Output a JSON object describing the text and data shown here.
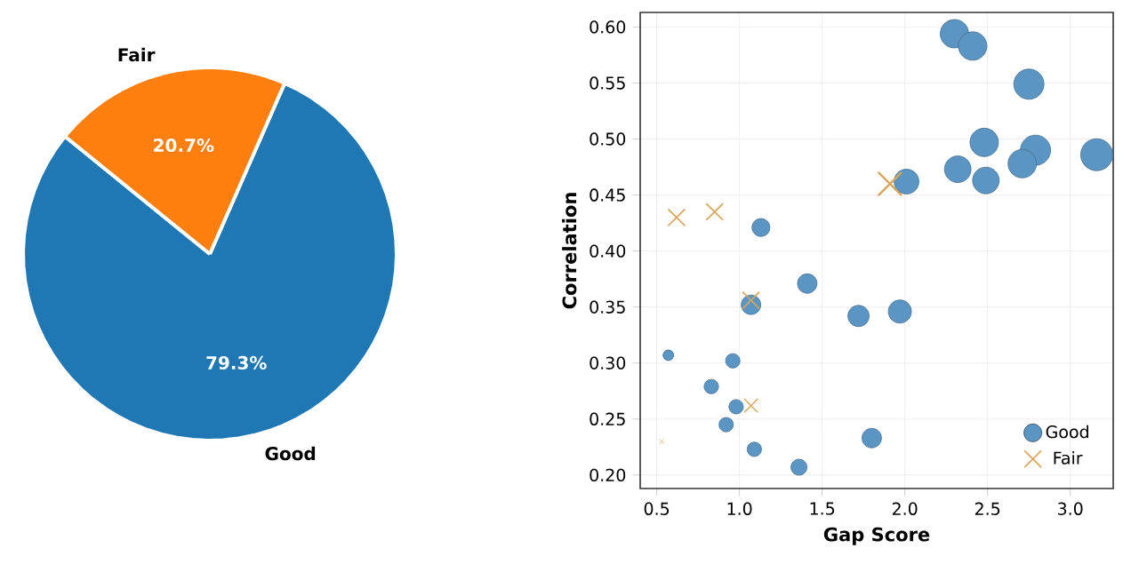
{
  "chart_data": [
    {
      "type": "pie",
      "categories": [
        "Good",
        "Fair"
      ],
      "values": [
        79.3,
        20.7
      ],
      "colors": [
        "#1f77b4",
        "#ff7f0e"
      ],
      "value_labels": [
        "79.3%",
        "20.7%"
      ]
    },
    {
      "type": "bubble",
      "xlabel": "Gap Score",
      "ylabel": "Correlation",
      "xlim": [
        0.4,
        3.26
      ],
      "ylim": [
        0.188,
        0.613
      ],
      "xticks": [
        {
          "value": 0.5,
          "label": "0.5"
        },
        {
          "value": 1.0,
          "label": "1.0"
        },
        {
          "value": 1.5,
          "label": "1.5"
        },
        {
          "value": 2.0,
          "label": "2.0"
        },
        {
          "value": 2.5,
          "label": "2.5"
        },
        {
          "value": 3.0,
          "label": "3.0"
        }
      ],
      "yticks": [
        {
          "value": 0.2,
          "label": "0.20"
        },
        {
          "value": 0.25,
          "label": "0.25"
        },
        {
          "value": 0.3,
          "label": "0.30"
        },
        {
          "value": 0.35,
          "label": "0.35"
        },
        {
          "value": 0.4,
          "label": "0.40"
        },
        {
          "value": 0.45,
          "label": "0.45"
        },
        {
          "value": 0.5,
          "label": "0.50"
        },
        {
          "value": 0.55,
          "label": "0.55"
        },
        {
          "value": 0.6,
          "label": "0.60"
        }
      ],
      "grid": true,
      "legend": "bottom right",
      "series": [
        {
          "name": "Good",
          "color": "#5b95c3",
          "marker": "circle",
          "x": [
            2.3,
            2.41,
            2.75,
            2.48,
            2.79,
            3.16,
            2.32,
            2.71,
            2.49,
            2.01,
            1.13,
            1.41,
            1.07,
            1.72,
            1.97,
            0.57,
            0.96,
            0.83,
            0.98,
            0.92,
            1.8,
            1.09,
            1.36
          ],
          "values": [
            0.594,
            0.583,
            0.549,
            0.497,
            0.49,
            0.486,
            0.473,
            0.478,
            0.463,
            0.462,
            0.421,
            0.371,
            0.352,
            0.342,
            0.346,
            0.307,
            0.302,
            0.279,
            0.261,
            0.245,
            0.233,
            0.223,
            0.207
          ],
          "sizes": [
            0.79,
            0.79,
            0.89,
            0.79,
            0.89,
            1.0,
            0.69,
            0.79,
            0.69,
            0.6,
            0.31,
            0.37,
            0.37,
            0.44,
            0.52,
            0.11,
            0.2,
            0.2,
            0.2,
            0.2,
            0.37,
            0.2,
            0.25
          ]
        },
        {
          "name": "Fair",
          "color": "#d9a55a",
          "marker": "cross",
          "x": [
            0.62,
            0.85,
            1.91,
            1.07,
            1.07,
            0.53
          ],
          "values": [
            0.43,
            0.435,
            0.46,
            0.356,
            0.262,
            0.23
          ],
          "sizes": [
            0.087,
            0.087,
            0.168,
            0.087,
            0.056,
            0.008
          ]
        }
      ]
    }
  ]
}
